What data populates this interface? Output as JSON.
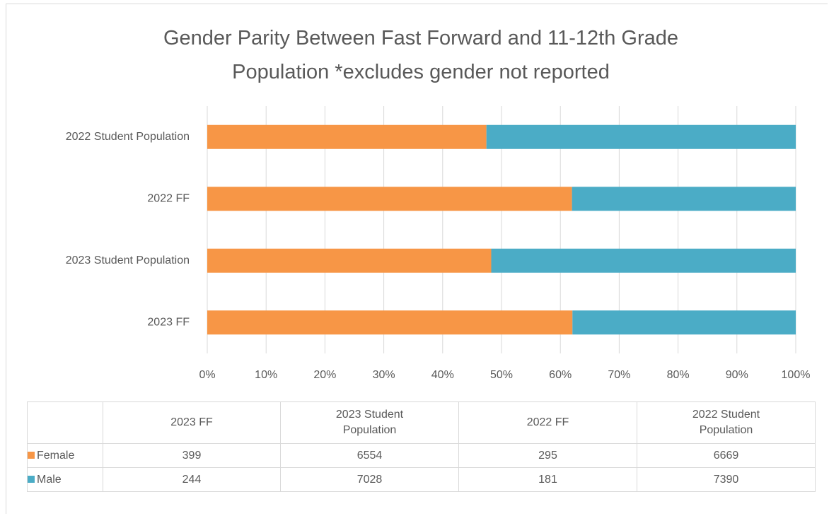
{
  "chart_data": {
    "type": "bar",
    "orientation": "horizontal",
    "stacking": "percent",
    "title": "Gender Parity Between Fast Forward and 11-12th Grade Population *excludes gender not reported",
    "categories": [
      "2023 FF",
      "2023 Student Population",
      "2022 FF",
      "2022 Student Population"
    ],
    "series": [
      {
        "name": "Female",
        "color": "#f79646",
        "values": [
          399,
          6554,
          295,
          6669
        ]
      },
      {
        "name": "Male",
        "color": "#4bacc6",
        "values": [
          244,
          7028,
          181,
          7390
        ]
      }
    ],
    "xlim": [
      0,
      100
    ],
    "xticks": [
      {
        "value": 0,
        "label": "0%"
      },
      {
        "value": 10,
        "label": "10%"
      },
      {
        "value": 20,
        "label": "20%"
      },
      {
        "value": 30,
        "label": "30%"
      },
      {
        "value": 40,
        "label": "40%"
      },
      {
        "value": 50,
        "label": "50%"
      },
      {
        "value": 60,
        "label": "60%"
      },
      {
        "value": 70,
        "label": "70%"
      },
      {
        "value": 80,
        "label": "80%"
      },
      {
        "value": 90,
        "label": "90%"
      },
      {
        "value": 100,
        "label": "100%"
      }
    ],
    "grid": true,
    "data_table": true
  }
}
